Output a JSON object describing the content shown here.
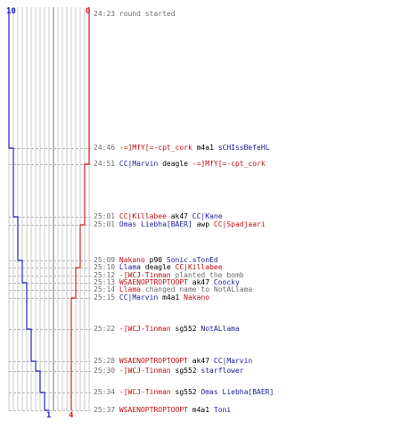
{
  "scoreboard": {
    "left_team": {
      "start": "10",
      "end": "1",
      "color": "#2323c8"
    },
    "right_team": {
      "start": "0",
      "end": "4",
      "color": "#d42020"
    }
  },
  "events": [
    {
      "time": "24:23",
      "parts": [
        {
          "text": "round started",
          "kind": "msg"
        }
      ]
    },
    {
      "time": "24:46",
      "parts": [
        {
          "text": "-=]MfY[=-cpt_cork",
          "kind": "red"
        },
        {
          "text": "m4a1",
          "kind": "weapon"
        },
        {
          "text": "sCHIssBefeHL",
          "kind": "blue"
        }
      ]
    },
    {
      "time": "24:51",
      "parts": [
        {
          "text": "CC|Marvin",
          "kind": "blue"
        },
        {
          "text": "deagle",
          "kind": "weapon"
        },
        {
          "text": "-=]MfY[=-cpt_cork",
          "kind": "red"
        }
      ]
    },
    {
      "time": "25:01",
      "parts": [
        {
          "text": "CC|Killabee",
          "kind": "red"
        },
        {
          "text": "ak47",
          "kind": "weapon"
        },
        {
          "text": "CC|Kane",
          "kind": "blue"
        }
      ]
    },
    {
      "time": "25:01",
      "parts": [
        {
          "text": "Omas Liebha[BAER]",
          "kind": "blue"
        },
        {
          "text": "awp",
          "kind": "weapon"
        },
        {
          "text": "CC|Spadjaari",
          "kind": "red"
        }
      ]
    },
    {
      "time": "25:09",
      "parts": [
        {
          "text": "Nakano",
          "kind": "red"
        },
        {
          "text": "p90",
          "kind": "weapon"
        },
        {
          "text": "Sonic.sTonEd",
          "kind": "blue"
        }
      ]
    },
    {
      "time": "25:10",
      "parts": [
        {
          "text": "Llama",
          "kind": "blue"
        },
        {
          "text": "deagle",
          "kind": "weapon"
        },
        {
          "text": "CC|Killabee",
          "kind": "red"
        }
      ]
    },
    {
      "time": "25:12",
      "parts": [
        {
          "text": "-[WCJ-Tinman",
          "kind": "red"
        },
        {
          "text": "planted the bomb",
          "kind": "msg"
        }
      ]
    },
    {
      "time": "25:13",
      "parts": [
        {
          "text": "WSAENOPTROPTOOPT",
          "kind": "red"
        },
        {
          "text": "ak47",
          "kind": "weapon"
        },
        {
          "text": "Coocky",
          "kind": "blue"
        }
      ]
    },
    {
      "time": "25:14",
      "parts": [
        {
          "text": "Llama",
          "kind": "red"
        },
        {
          "text": "changed name to NotALlama",
          "kind": "msg"
        }
      ]
    },
    {
      "time": "25:15",
      "parts": [
        {
          "text": "CC|Marvin",
          "kind": "blue"
        },
        {
          "text": "m4a1",
          "kind": "weapon"
        },
        {
          "text": "Nakano",
          "kind": "red"
        }
      ]
    },
    {
      "time": "25:22",
      "parts": [
        {
          "text": "-[WCJ-Tinman",
          "kind": "red"
        },
        {
          "text": "sg552",
          "kind": "weapon"
        },
        {
          "text": "NotALlama",
          "kind": "blue"
        }
      ]
    },
    {
      "time": "25:28",
      "parts": [
        {
          "text": "WSAENOPTROPTOOPT",
          "kind": "red"
        },
        {
          "text": "ak47",
          "kind": "weapon"
        },
        {
          "text": "CC|Marvin",
          "kind": "blue"
        }
      ]
    },
    {
      "time": "25:30",
      "parts": [
        {
          "text": "-[WCJ-Tinman",
          "kind": "red"
        },
        {
          "text": "sg552",
          "kind": "weapon"
        },
        {
          "text": "starflower",
          "kind": "blue"
        }
      ]
    },
    {
      "time": "25:34",
      "parts": [
        {
          "text": "-[WCJ-Tinman",
          "kind": "red"
        },
        {
          "text": "sg552",
          "kind": "weapon"
        },
        {
          "text": "Omas Liebha[BAER]",
          "kind": "blue"
        }
      ]
    },
    {
      "time": "25:37",
      "parts": [
        {
          "text": "WSAENOPTROPTOOPT",
          "kind": "red"
        },
        {
          "text": "m4a1",
          "kind": "weapon"
        },
        {
          "text": "Toni",
          "kind": "blue"
        }
      ]
    }
  ],
  "colors": {
    "blue_team": "#1c1c9c",
    "red_team": "#c01010",
    "weapon": "#000000",
    "message": "#6e6e6e",
    "grid": "#c8c8c8",
    "dash": "#b4b4b4"
  }
}
